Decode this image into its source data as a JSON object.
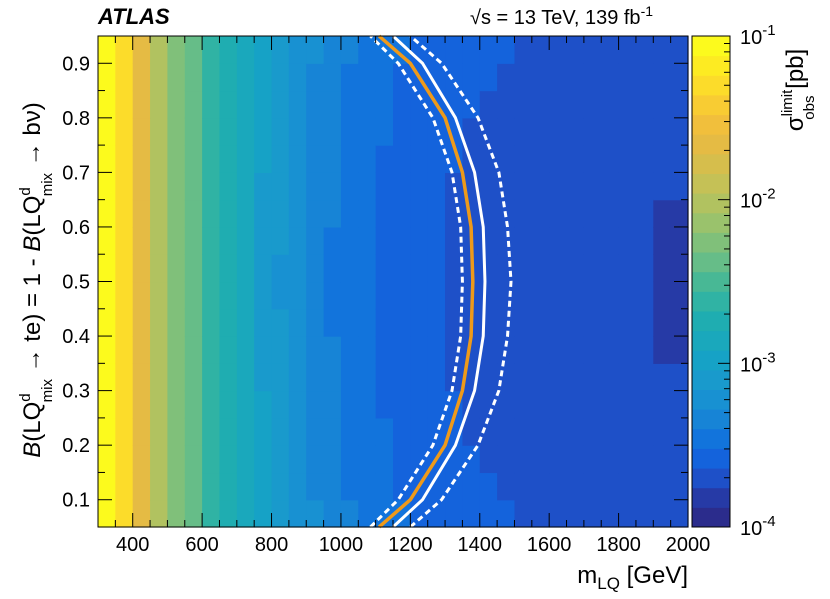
{
  "chart_data": {
    "type": "heatmap",
    "experiment_label": "ATLAS",
    "energy_label": "√s = 13 TeV, 139 fb",
    "energy_label_sup": "-1",
    "xlabel_main": "m",
    "xlabel_sub": "LQ",
    "xlabel_units": " [GeV]",
    "ylabel_parts": {
      "b1": "B",
      "p1": "(LQ",
      "sup1": "d",
      "sub1": "mix",
      "p2": " → te) = 1 - ",
      "b2": "B",
      "p3": "(LQ",
      "sup2": "d",
      "sub2": "mix",
      "p4": " → bν)"
    },
    "zlabel_main": "σ",
    "zlabel_sup": "limit",
    "zlabel_sub": "obs",
    "zlabel_units": " [pb]",
    "xlim": [
      300,
      2000
    ],
    "ylim": [
      0.05,
      0.95
    ],
    "x_ticks": [
      400,
      600,
      800,
      1000,
      1200,
      1400,
      1600,
      1800,
      2000
    ],
    "y_ticks": [
      0.1,
      0.2,
      0.3,
      0.4,
      0.5,
      0.6,
      0.7,
      0.8,
      0.9
    ],
    "z_log": true,
    "z_range": [
      0.0001,
      0.1
    ],
    "z_tick_bases": [
      "10",
      "10",
      "10",
      "10"
    ],
    "z_tick_exps": [
      "-4",
      "-3",
      "-2",
      "-1"
    ],
    "z_tick_values": [
      0.0001,
      0.001,
      0.01,
      0.1
    ],
    "colormap": [
      "#2b2c8c",
      "#263aa6",
      "#1e50c8",
      "#1463dc",
      "#1274dc",
      "#1784d6",
      "#1891d2",
      "#199acc",
      "#16a2c6",
      "#1aa8bc",
      "#1fadb1",
      "#30b3a4",
      "#48b895",
      "#66bd88",
      "#80c07a",
      "#9ac26c",
      "#b1c260",
      "#c5c156",
      "#d6be4c",
      "#e5bb44",
      "#f1bf3c",
      "#f8cc33",
      "#fcdc2a",
      "#fdeb22",
      "#fcfa1d"
    ],
    "mass_points": [
      300,
      350,
      400,
      450,
      500,
      550,
      600,
      650,
      700,
      750,
      800,
      850,
      900,
      950,
      1000,
      1050,
      1100,
      1150,
      1200,
      1250,
      1300,
      1350,
      1400,
      1450,
      1500,
      1600,
      1700,
      1800,
      1900,
      2000
    ],
    "branching_points": [
      0.05,
      0.95
    ],
    "observed_limit_mass_by_branching": {
      "branching": [
        0.05,
        0.1,
        0.2,
        0.3,
        0.4,
        0.5,
        0.6,
        0.7,
        0.8,
        0.9,
        0.95
      ],
      "mass": [
        1110,
        1200,
        1300,
        1350,
        1375,
        1380,
        1375,
        1350,
        1300,
        1200,
        1110
      ]
    },
    "expected_limit_mass_by_branching": {
      "branching": [
        0.05,
        0.1,
        0.2,
        0.3,
        0.4,
        0.5,
        0.6,
        0.7,
        0.8,
        0.9,
        0.95
      ],
      "mass": [
        1150,
        1235,
        1330,
        1385,
        1410,
        1415,
        1410,
        1385,
        1330,
        1235,
        1150
      ]
    },
    "expected_minus1sigma_mass_by_branching": {
      "branching": [
        0.05,
        0.1,
        0.2,
        0.3,
        0.4,
        0.5,
        0.6,
        0.7,
        0.8,
        0.9,
        0.95
      ],
      "mass": [
        1085,
        1165,
        1265,
        1320,
        1345,
        1350,
        1345,
        1320,
        1265,
        1165,
        1085
      ]
    },
    "expected_plus1sigma_mass_by_branching": {
      "branching": [
        0.05,
        0.1,
        0.2,
        0.3,
        0.4,
        0.5,
        0.6,
        0.7,
        0.8,
        0.9,
        0.95
      ],
      "mass": [
        1200,
        1290,
        1395,
        1455,
        1480,
        1490,
        1480,
        1455,
        1395,
        1290,
        1200
      ]
    },
    "contour_colors": {
      "observed": "#ee9a1a",
      "expected": "#ffffff",
      "band": "#ffffff"
    }
  }
}
